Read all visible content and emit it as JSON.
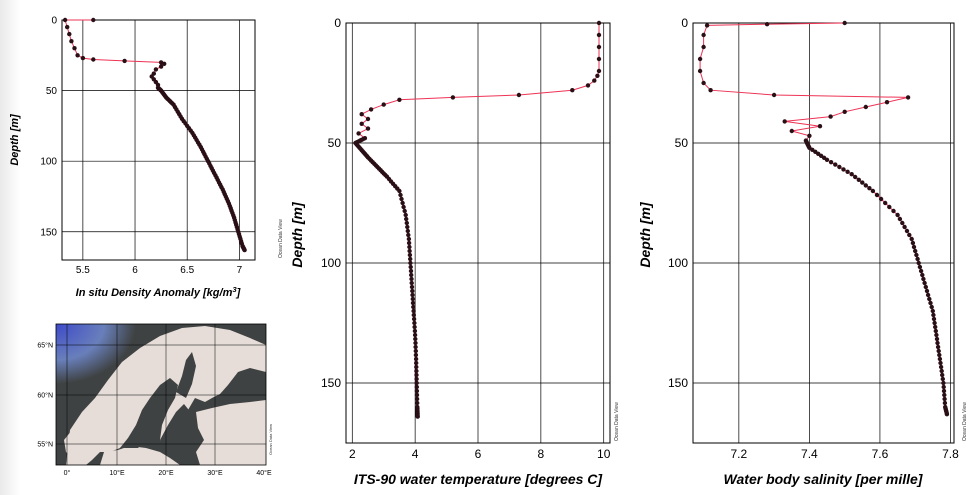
{
  "watermark": "Ocean Data View",
  "colors": {
    "line": "#ee3355",
    "point": "#2a0f16",
    "grid": "#000000"
  },
  "map": {
    "lat_labels": [
      "65°N",
      "60°N",
      "55°N"
    ],
    "lon_labels": [
      "0°",
      "10°E",
      "20°E",
      "30°E",
      "40°E"
    ],
    "colors": {
      "sea": "#3f4242",
      "land": "#e6ddd9",
      "arctic": "#3d4bd8"
    }
  },
  "chart_data": [
    {
      "type": "line",
      "xlabel": "In situ Density Anomaly [kg/m",
      "xlabel_sup": "3",
      "xlabel_tail": "]",
      "ylabel": "Depth [m]",
      "xlim": [
        5.3,
        7.15
      ],
      "ylim": [
        170,
        0
      ],
      "y_inverted": true,
      "xticks": [
        5.5,
        6,
        6.5,
        7
      ],
      "xtick_labels": [
        "5.5",
        "6",
        "6.5",
        "7"
      ],
      "yticks": [
        0,
        50,
        100,
        150
      ],
      "ytick_labels": [
        "0",
        "50",
        "100",
        "150"
      ],
      "grid": true,
      "series": [
        {
          "profile": [
            [
              5.6,
              0
            ],
            [
              5.33,
              0
            ],
            [
              5.35,
              5
            ],
            [
              5.37,
              10
            ],
            [
              5.39,
              15
            ],
            [
              5.42,
              20
            ],
            [
              5.45,
              25
            ],
            [
              5.5,
              27
            ],
            [
              5.6,
              28
            ],
            [
              5.9,
              29
            ],
            [
              6.25,
              30
            ],
            [
              6.28,
              31
            ],
            [
              6.25,
              33
            ],
            [
              6.2,
              35
            ],
            [
              6.18,
              38
            ],
            [
              6.16,
              40
            ],
            [
              6.18,
              42
            ],
            [
              6.2,
              44
            ],
            [
              6.22,
              46
            ],
            [
              6.22,
              48
            ],
            [
              6.25,
              50
            ],
            [
              6.3,
              55
            ],
            [
              6.37,
              60
            ],
            [
              6.45,
              70
            ],
            [
              6.55,
              80
            ],
            [
              6.63,
              90
            ],
            [
              6.7,
              100
            ],
            [
              6.77,
              110
            ],
            [
              6.84,
              120
            ],
            [
              6.9,
              130
            ],
            [
              6.95,
              140
            ],
            [
              6.99,
              150
            ],
            [
              7.03,
              160
            ],
            [
              7.05,
              163
            ]
          ]
        }
      ]
    },
    {
      "type": "line",
      "xlabel": "ITS-90 water temperature [degrees C]",
      "ylabel": "Depth [m]",
      "xlim": [
        1.8,
        10.2
      ],
      "ylim": [
        175,
        0
      ],
      "y_inverted": true,
      "xticks": [
        2,
        4,
        6,
        8,
        10
      ],
      "xtick_labels": [
        "2",
        "4",
        "6",
        "8",
        "10"
      ],
      "yticks": [
        0,
        50,
        100,
        150
      ],
      "ytick_labels": [
        "0",
        "50",
        "100",
        "150"
      ],
      "grid": true,
      "series": [
        {
          "profile": [
            [
              9.85,
              0
            ],
            [
              9.85,
              5
            ],
            [
              9.85,
              10
            ],
            [
              9.85,
              15
            ],
            [
              9.85,
              20
            ],
            [
              9.8,
              22
            ],
            [
              9.7,
              24
            ],
            [
              9.5,
              26
            ],
            [
              9.0,
              28
            ],
            [
              7.3,
              30
            ],
            [
              5.2,
              31
            ],
            [
              3.5,
              32
            ],
            [
              3.0,
              34
            ],
            [
              2.6,
              36
            ],
            [
              2.3,
              38
            ],
            [
              2.5,
              40
            ],
            [
              2.3,
              42
            ],
            [
              2.5,
              44
            ],
            [
              2.2,
              46
            ],
            [
              2.4,
              48
            ],
            [
              2.1,
              50
            ],
            [
              2.3,
              53
            ],
            [
              2.5,
              56
            ],
            [
              2.8,
              60
            ],
            [
              3.1,
              64
            ],
            [
              3.5,
              70
            ],
            [
              3.7,
              80
            ],
            [
              3.8,
              90
            ],
            [
              3.85,
              100
            ],
            [
              3.9,
              110
            ],
            [
              3.95,
              120
            ],
            [
              4.0,
              130
            ],
            [
              4.03,
              140
            ],
            [
              4.05,
              150
            ],
            [
              4.07,
              160
            ],
            [
              4.08,
              164
            ]
          ]
        }
      ]
    },
    {
      "type": "line",
      "xlabel": "Water body salinity [per mille]",
      "ylabel": "Depth [m]",
      "xlim": [
        7.07,
        7.81
      ],
      "ylim": [
        175,
        0
      ],
      "y_inverted": true,
      "xticks": [
        7.2,
        7.4,
        7.6,
        7.8
      ],
      "xtick_labels": [
        "7.2",
        "7.4",
        "7.6",
        "7.8"
      ],
      "yticks": [
        0,
        50,
        100,
        150
      ],
      "ytick_labels": [
        "0",
        "50",
        "100",
        "150"
      ],
      "grid": true,
      "series": [
        {
          "profile": [
            [
              7.5,
              0
            ],
            [
              7.28,
              0.5
            ],
            [
              7.11,
              1
            ],
            [
              7.1,
              5
            ],
            [
              7.1,
              10
            ],
            [
              7.09,
              15
            ],
            [
              7.09,
              20
            ],
            [
              7.1,
              25
            ],
            [
              7.12,
              28
            ],
            [
              7.3,
              30
            ],
            [
              7.68,
              31
            ],
            [
              7.62,
              33
            ],
            [
              7.56,
              35
            ],
            [
              7.5,
              37
            ],
            [
              7.46,
              39
            ],
            [
              7.33,
              41
            ],
            [
              7.43,
              43
            ],
            [
              7.35,
              45
            ],
            [
              7.4,
              47
            ],
            [
              7.39,
              49
            ],
            [
              7.4,
              52
            ],
            [
              7.45,
              57
            ],
            [
              7.52,
              63
            ],
            [
              7.58,
              70
            ],
            [
              7.65,
              80
            ],
            [
              7.69,
              90
            ],
            [
              7.71,
              100
            ],
            [
              7.73,
              110
            ],
            [
              7.75,
              120
            ],
            [
              7.76,
              130
            ],
            [
              7.77,
              140
            ],
            [
              7.78,
              150
            ],
            [
              7.785,
              160
            ],
            [
              7.79,
              163
            ]
          ]
        }
      ]
    }
  ]
}
